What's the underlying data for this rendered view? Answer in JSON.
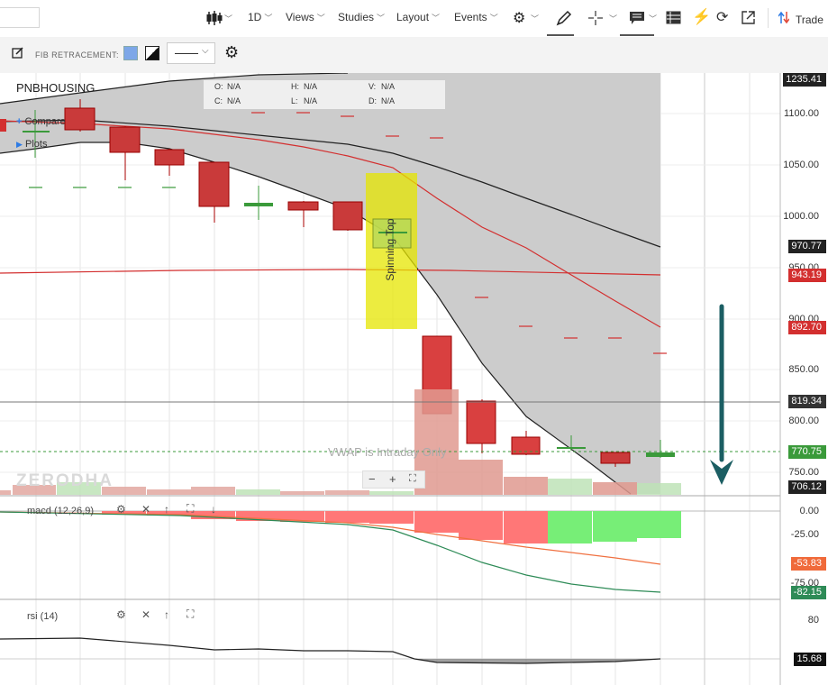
{
  "toolbar": {
    "interval": "1D",
    "views": "Views",
    "studies": "Studies",
    "layout": "Layout",
    "events": "Events",
    "trade": "Trade"
  },
  "fib_bar": {
    "label": "FIB RETRACEMENT:",
    "colors": [
      "#7da7e8",
      "#000000"
    ]
  },
  "chart": {
    "symbol": "PNBHOUSING",
    "ohlc": {
      "o_label": "O:",
      "o": "N/A",
      "h_label": "H:",
      "h": "N/A",
      "v_label": "V:",
      "v": "N/A",
      "c_label": "C:",
      "c": "N/A",
      "l_label": "L:",
      "l": "N/A",
      "d_label": "D:",
      "d": "N/A"
    },
    "legend": {
      "compare": "Compare",
      "plots": "Plots"
    },
    "annotation": "Spinning Top",
    "vwap_note": "VWAP is Intraday Only",
    "watermark": "ZERODHA",
    "zoom": {
      "minus": "−",
      "plus": "+",
      "fit": "⛶"
    },
    "price_axis": [
      "1100.00",
      "1050.00",
      "1000.00",
      "950.00",
      "900.00",
      "850.00",
      "800.00",
      "750.00"
    ],
    "price_tags": [
      {
        "value": "1235.41",
        "color": "#222222"
      },
      {
        "value": "970.77",
        "color": "#222222"
      },
      {
        "value": "943.19",
        "color": "#d32f2f"
      },
      {
        "value": "892.70",
        "color": "#d32f2f"
      },
      {
        "value": "819.34",
        "color": "#333333"
      },
      {
        "value": "770.75",
        "color": "#3a9a3a"
      },
      {
        "value": "706.12",
        "color": "#222222"
      }
    ]
  },
  "macd": {
    "label": "macd (12,26,9)",
    "axis": [
      "0.00",
      "-25.00",
      "-75.00"
    ],
    "tags": [
      {
        "value": "-53.83",
        "color": "#f06a3a"
      },
      {
        "value": "-82.15",
        "color": "#2e8b57"
      }
    ]
  },
  "rsi": {
    "label": "rsi (14)",
    "axis": [
      "80"
    ],
    "tag": {
      "value": "15.68",
      "color": "#111111"
    }
  },
  "chart_data": {
    "type": "candlestick",
    "candles": [
      {
        "o": 1095,
        "h": 1100,
        "l": 1090,
        "c": 1090
      },
      {
        "o": 1090,
        "h": 1100,
        "l": 1060,
        "c": 1090
      },
      {
        "o": 1110,
        "h": 1120,
        "l": 1085,
        "c": 1090
      },
      {
        "o": 1085,
        "h": 1090,
        "l": 1035,
        "c": 1062
      },
      {
        "o": 1065,
        "h": 1070,
        "l": 1040,
        "c": 1050
      },
      {
        "o": 1050,
        "h": 1055,
        "l": 993,
        "c": 1008
      },
      {
        "o": 1010,
        "h": 1028,
        "l": 993,
        "c": 1012
      },
      {
        "o": 1013,
        "h": 1015,
        "l": 990,
        "c": 1005
      },
      {
        "o": 1015,
        "h": 1015,
        "l": 985,
        "c": 988
      },
      {
        "o": 988,
        "h": 1000,
        "l": 965,
        "c": 988
      },
      {
        "o": 885,
        "h": 885,
        "l": 805,
        "c": 807
      },
      {
        "o": 820,
        "h": 822,
        "l": 778,
        "c": 780
      },
      {
        "o": 795,
        "h": 802,
        "l": 770,
        "c": 776
      },
      {
        "o": 771,
        "h": 783,
        "l": 770,
        "c": 772
      },
      {
        "o": 766,
        "h": 770,
        "l": 752,
        "c": 756
      },
      {
        "o": 765,
        "h": 783,
        "l": 762,
        "c": 771
      }
    ]
  }
}
